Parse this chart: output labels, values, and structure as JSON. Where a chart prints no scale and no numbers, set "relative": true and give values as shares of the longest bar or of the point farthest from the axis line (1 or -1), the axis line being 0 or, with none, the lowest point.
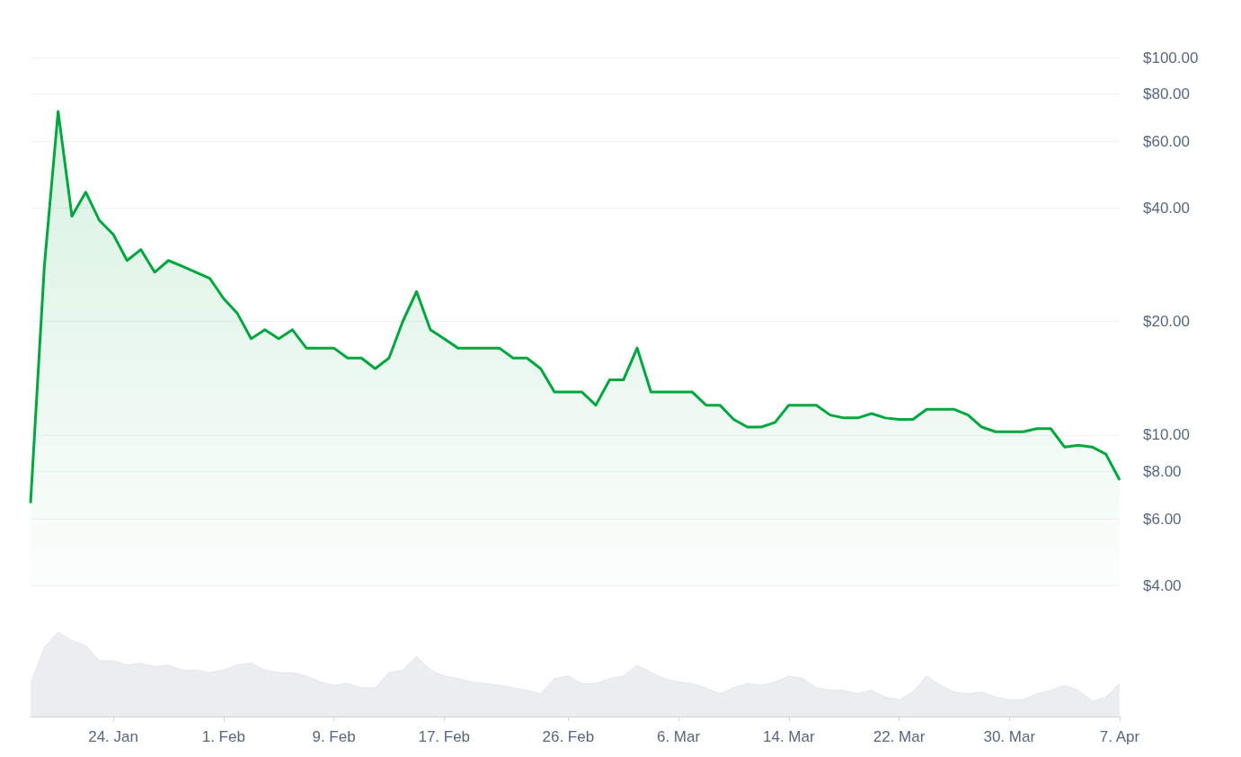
{
  "chart_data": [
    {
      "type": "area",
      "x": [
        "--01-18",
        "--01-19",
        "--01-20",
        "--01-21",
        "--01-22",
        "--01-23",
        "--01-24",
        "--01-25",
        "--01-26",
        "--01-27",
        "--01-28",
        "--01-29",
        "--01-30",
        "--01-31",
        "--02-01",
        "--02-02",
        "--02-03",
        "--02-04",
        "--02-05",
        "--02-06",
        "--02-07",
        "--02-08",
        "--02-09",
        "--02-10",
        "--02-11",
        "--02-12",
        "--02-13",
        "--02-14",
        "--02-15",
        "--02-16",
        "--02-17",
        "--02-18",
        "--02-19",
        "--02-20",
        "--02-21",
        "--02-22",
        "--02-23",
        "--02-24",
        "--02-25",
        "--02-26",
        "--02-27",
        "--02-28",
        "--03-01",
        "--03-02",
        "--03-03",
        "--03-04",
        "--03-05",
        "--03-06",
        "--03-07",
        "--03-08",
        "--03-09",
        "--03-10",
        "--03-11",
        "--03-12",
        "--03-13",
        "--03-14",
        "--03-15",
        "--03-16",
        "--03-17",
        "--03-18",
        "--03-19",
        "--03-20",
        "--03-21",
        "--03-22",
        "--03-23",
        "--03-24",
        "--03-25",
        "--03-26",
        "--03-27",
        "--03-28",
        "--03-29",
        "--03-30",
        "--03-31",
        "--04-01",
        "--04-02",
        "--04-03",
        "--04-04",
        "--04-05",
        "--04-06",
        "--04-07"
      ],
      "series": [
        {
          "color": "#00a83e",
          "values": [
            6.6,
            28,
            72,
            38,
            44,
            37,
            34,
            29,
            31,
            27,
            29,
            28,
            27,
            26,
            23,
            21,
            18,
            19,
            18,
            19,
            17,
            17,
            17,
            16,
            16,
            15,
            16,
            20,
            24,
            19,
            18,
            17,
            17,
            17,
            17,
            16,
            16,
            15,
            13,
            13,
            13,
            12,
            14,
            14,
            17,
            13,
            13,
            13,
            13,
            12,
            12,
            11,
            10.5,
            10.5,
            10.8,
            12,
            12,
            12,
            11.3,
            11.1,
            11.1,
            11.4,
            11.1,
            11,
            11,
            11.7,
            11.7,
            11.7,
            11.3,
            10.5,
            10.2,
            10.2,
            10.2,
            10.4,
            10.4,
            9.3,
            9.4,
            9.3,
            8.9,
            7.6
          ]
        }
      ],
      "log": true,
      "ylim": [
        4,
        100
      ],
      "yticks": [
        {
          "value": 4,
          "label": "$4.00"
        },
        {
          "value": 6,
          "label": "$6.00"
        },
        {
          "value": 8,
          "label": "$8.00"
        },
        {
          "value": 10,
          "label": "$10.00"
        },
        {
          "value": 20,
          "label": "$20.00"
        },
        {
          "value": 40,
          "label": "$40.00"
        },
        {
          "value": 60,
          "label": "$60.00"
        },
        {
          "value": 80,
          "label": "$80.00"
        },
        {
          "value": 100,
          "label": "$100.00"
        }
      ],
      "xlim": [
        "--01-18",
        "--04-07"
      ],
      "grid": "y",
      "tick_labels": "y"
    },
    {
      "type": "area",
      "relative": true,
      "x": [
        "--01-18",
        "--01-19",
        "--01-20",
        "--01-21",
        "--01-22",
        "--01-23",
        "--01-24",
        "--01-25",
        "--01-26",
        "--01-27",
        "--01-28",
        "--01-29",
        "--01-30",
        "--01-31",
        "--02-01",
        "--02-02",
        "--02-03",
        "--02-04",
        "--02-05",
        "--02-06",
        "--02-07",
        "--02-08",
        "--02-09",
        "--02-10",
        "--02-11",
        "--02-12",
        "--02-13",
        "--02-14",
        "--02-15",
        "--02-16",
        "--02-17",
        "--02-18",
        "--02-19",
        "--02-20",
        "--02-21",
        "--02-22",
        "--02-23",
        "--02-24",
        "--02-25",
        "--02-26",
        "--02-27",
        "--02-28",
        "--03-01",
        "--03-02",
        "--03-03",
        "--03-04",
        "--03-05",
        "--03-06",
        "--03-07",
        "--03-08",
        "--03-09",
        "--03-10",
        "--03-11",
        "--03-12",
        "--03-13",
        "--03-14",
        "--03-15",
        "--03-16",
        "--03-17",
        "--03-18",
        "--03-19",
        "--03-20",
        "--03-21",
        "--03-22",
        "--03-23",
        "--03-24",
        "--03-25",
        "--03-26",
        "--03-27",
        "--03-28",
        "--03-29",
        "--03-30",
        "--03-31",
        "--04-01",
        "--04-02",
        "--04-03",
        "--04-04",
        "--04-05",
        "--04-06",
        "--04-07"
      ],
      "series": [
        {
          "color": "#e3e6ea",
          "values": [
            0.39,
            0.82,
            1,
            0.9,
            0.84,
            0.66,
            0.66,
            0.61,
            0.63,
            0.59,
            0.61,
            0.55,
            0.55,
            0.52,
            0.55,
            0.61,
            0.63,
            0.55,
            0.52,
            0.52,
            0.48,
            0.41,
            0.37,
            0.39,
            0.34,
            0.34,
            0.52,
            0.55,
            0.71,
            0.55,
            0.48,
            0.45,
            0.41,
            0.39,
            0.37,
            0.34,
            0.31,
            0.27,
            0.45,
            0.48,
            0.39,
            0.39,
            0.45,
            0.48,
            0.61,
            0.52,
            0.45,
            0.41,
            0.39,
            0.34,
            0.27,
            0.34,
            0.39,
            0.37,
            0.41,
            0.48,
            0.45,
            0.34,
            0.31,
            0.31,
            0.27,
            0.31,
            0.23,
            0.2,
            0.29,
            0.48,
            0.37,
            0.29,
            0.27,
            0.29,
            0.23,
            0.2,
            0.2,
            0.27,
            0.31,
            0.37,
            0.31,
            0.18,
            0.23,
            0.39
          ]
        }
      ],
      "xlim": [
        "--01-18",
        "--04-07"
      ],
      "xticks": [
        {
          "value": "--01-24",
          "label": "24. Jan"
        },
        {
          "value": "--02-01",
          "label": "1. Feb"
        },
        {
          "value": "--02-09",
          "label": "9. Feb"
        },
        {
          "value": "--02-17",
          "label": "17. Feb"
        },
        {
          "value": "--02-26",
          "label": "26. Feb"
        },
        {
          "value": "--03-06",
          "label": "6. Mar"
        },
        {
          "value": "--03-14",
          "label": "14. Mar"
        },
        {
          "value": "--03-22",
          "label": "22. Mar"
        },
        {
          "value": "--03-30",
          "label": "30. Mar"
        },
        {
          "value": "--04-07",
          "label": "7. Apr"
        }
      ],
      "tick_labels": "x"
    }
  ]
}
